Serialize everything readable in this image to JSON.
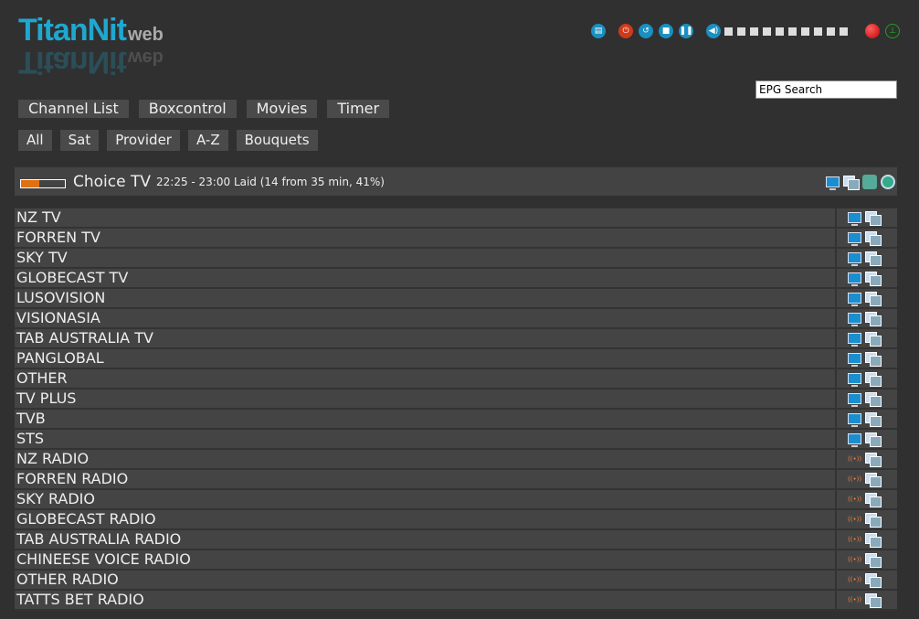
{
  "logo": {
    "text": "TitanNit",
    "suffix": "web"
  },
  "controls": {
    "icons": [
      "remote-icon",
      "power-icon",
      "restart-icon",
      "stop-icon",
      "pause-icon",
      "volume-icon"
    ],
    "volume_level": 0,
    "volume_steps": 10,
    "record": "record-icon",
    "signal": "signal-icon",
    "colors": {
      "power": "#d03a1a",
      "blue": "#1a8fc0",
      "record": "#e01010",
      "signal": "#20a020"
    }
  },
  "search": {
    "value": "EPG Search"
  },
  "menu": [
    "Channel List",
    "Boxcontrol",
    "Movies",
    "Timer"
  ],
  "filters": [
    "All",
    "Sat",
    "Provider",
    "A-Z",
    "Bouquets"
  ],
  "now_playing": {
    "channel": "Choice TV",
    "info": "22:25 - 23:00 Laid (14 from 35 min, 41%)",
    "progress_percent": 41,
    "progress_color": "#e07010"
  },
  "channels": [
    {
      "name": "NZ TV",
      "type": "tv"
    },
    {
      "name": "FORREN TV",
      "type": "tv"
    },
    {
      "name": "SKY TV",
      "type": "tv"
    },
    {
      "name": "GLOBECAST TV",
      "type": "tv"
    },
    {
      "name": "LUSOVISION",
      "type": "tv"
    },
    {
      "name": "VISIONASIA",
      "type": "tv"
    },
    {
      "name": "TAB AUSTRALIA TV",
      "type": "tv"
    },
    {
      "name": "PANGLOBAL",
      "type": "tv"
    },
    {
      "name": "OTHER",
      "type": "tv"
    },
    {
      "name": "TV PLUS",
      "type": "tv"
    },
    {
      "name": "TVB",
      "type": "tv"
    },
    {
      "name": "STS",
      "type": "tv"
    },
    {
      "name": "NZ RADIO",
      "type": "radio"
    },
    {
      "name": "FORREN RADIO",
      "type": "radio"
    },
    {
      "name": "SKY RADIO",
      "type": "radio"
    },
    {
      "name": "GLOBECAST RADIO",
      "type": "radio"
    },
    {
      "name": "TAB AUSTRALIA RADIO",
      "type": "radio"
    },
    {
      "name": "CHINEESE VOICE RADIO",
      "type": "radio"
    },
    {
      "name": "OTHER RADIO",
      "type": "radio"
    },
    {
      "name": "TATTS BET RADIO",
      "type": "radio"
    }
  ]
}
